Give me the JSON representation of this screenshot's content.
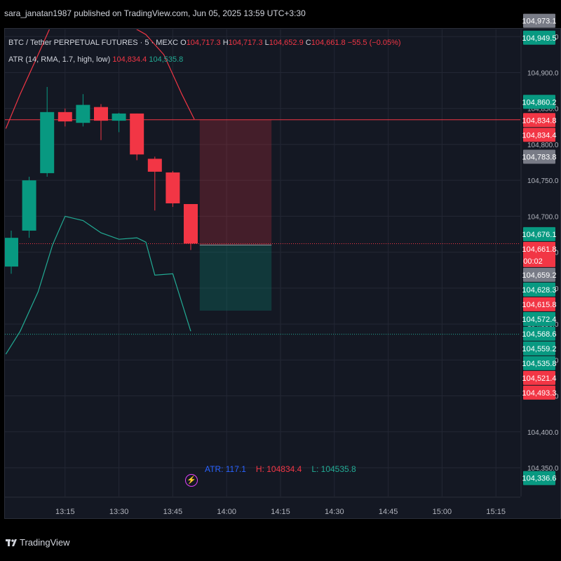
{
  "header": {
    "published": "sara_janatan1987 published on TradingView.com, Jun 05, 2025 13:59 UTC+3:30"
  },
  "legend": {
    "symbol": "BTC / Tether PERPETUAL FUTURES · 5 · MEXC",
    "o_label": "O",
    "o": "104,717.3",
    "h_label": "H",
    "h": "104,717.3",
    "l_label": "L",
    "l": "104,652.9",
    "c_label": "C",
    "c": "104,661.8",
    "change": "−55.5 (−0.05%)",
    "atr_title": "ATR (14, RMA, 1.7, high, low)",
    "atr_v1": "104,834.4",
    "atr_v2": "104,535.8"
  },
  "atr_panel": {
    "atr": "ATR: 117.1",
    "h": "H: 104834.4",
    "l": "L: 104535.8"
  },
  "footer": {
    "brand": "TradingView"
  },
  "colors": {
    "bg": "#141823",
    "up": "#089981",
    "down": "#f23645",
    "grid": "#232734",
    "axis_text": "#b2b5be"
  },
  "chart_data": {
    "type": "candlestick",
    "y_range": [
      104320,
      104990
    ],
    "y_ticks": [
      104950,
      104900,
      104850,
      104800,
      104750,
      104700,
      104650,
      104600,
      104550,
      104500,
      104450,
      104400,
      104350
    ],
    "y_tick_labels": [
      "104,950.0",
      "104,900.0",
      "104,850.0",
      "104,800.0",
      "104,750.0",
      "104,700.0",
      "104,650.0",
      "104,600.0",
      "104,550.0",
      "104,500.0",
      "104,450.0",
      "104,400.0",
      "104,350.0"
    ],
    "x_labels": [
      {
        "t": 3,
        "label": "13:15"
      },
      {
        "t": 6,
        "label": "13:30"
      },
      {
        "t": 9,
        "label": "13:45"
      },
      {
        "t": 12,
        "label": "14:00"
      },
      {
        "t": 15,
        "label": "14:15"
      },
      {
        "t": 18,
        "label": "14:30"
      },
      {
        "t": 21,
        "label": "14:45"
      },
      {
        "t": 24,
        "label": "15:00"
      },
      {
        "t": 27,
        "label": "15:15"
      }
    ],
    "candles": [
      {
        "t": 0,
        "o": 104630,
        "h": 104680,
        "l": 104620,
        "c": 104670
      },
      {
        "t": 1,
        "o": 104680,
        "h": 104755,
        "l": 104670,
        "c": 104750
      },
      {
        "t": 2,
        "o": 104760,
        "h": 104880,
        "l": 104755,
        "c": 104845
      },
      {
        "t": 3,
        "o": 104845,
        "h": 104850,
        "l": 104825,
        "c": 104832
      },
      {
        "t": 4,
        "o": 104830,
        "h": 104870,
        "l": 104825,
        "c": 104855
      },
      {
        "t": 5,
        "o": 104852,
        "h": 104856,
        "l": 104806,
        "c": 104833
      },
      {
        "t": 6,
        "o": 104833,
        "h": 104844,
        "l": 104817,
        "c": 104843
      },
      {
        "t": 7,
        "o": 104843,
        "h": 104843,
        "l": 104778,
        "c": 104786
      },
      {
        "t": 8,
        "o": 104780,
        "h": 104783,
        "l": 104708,
        "c": 104762
      },
      {
        "t": 9,
        "o": 104761,
        "h": 104763,
        "l": 104713,
        "c": 104718
      },
      {
        "t": 10,
        "o": 104717,
        "h": 104717,
        "l": 104653,
        "c": 104662
      }
    ],
    "atr_upper": [
      [
        -0.3,
        104822
      ],
      [
        0.5,
        104870
      ],
      [
        1.5,
        104925
      ],
      [
        2.3,
        104970
      ],
      [
        3,
        104995
      ],
      [
        4,
        104995
      ],
      [
        5,
        104990
      ],
      [
        5.5,
        104982
      ],
      [
        6.5,
        104967
      ],
      [
        7.5,
        104953
      ],
      [
        8.5,
        104925
      ],
      [
        9.5,
        104870
      ],
      [
        10.2,
        104835
      ]
    ],
    "atr_lower": [
      [
        -0.3,
        104508
      ],
      [
        0.5,
        104540
      ],
      [
        1.5,
        104595
      ],
      [
        2.3,
        104660
      ],
      [
        3,
        104700
      ],
      [
        4,
        104694
      ],
      [
        5,
        104677
      ],
      [
        6,
        104668
      ],
      [
        7,
        104670
      ],
      [
        7.5,
        104664
      ],
      [
        8,
        104618
      ],
      [
        9,
        104620
      ],
      [
        10,
        104540
      ]
    ],
    "position": {
      "t_start": 10.5,
      "t_end": 14.5,
      "entry": 104660.0,
      "stop": 104834.4,
      "target": 104568.6
    },
    "hlines": [
      {
        "y": 104834.4,
        "color": "#f23645",
        "style": "solid"
      },
      {
        "y": 104661.8,
        "color": "#f23645",
        "style": "dotted"
      },
      {
        "y": 104535.8,
        "color": "#22ab94",
        "style": "dotted"
      }
    ],
    "price_labels": [
      {
        "y": 104973.1,
        "text": "104,973.1",
        "bg": "#787b86"
      },
      {
        "y": 104949.5,
        "text": "104,949.5",
        "bg": "#089981"
      },
      {
        "y": 104860.2,
        "text": "104,860.2",
        "bg": "#089981"
      },
      {
        "y": 104834.8,
        "text": "104,834.8",
        "bg": "#f23645"
      },
      {
        "y": 104834.4,
        "text": "104,834.4",
        "bg": "#f23645"
      },
      {
        "y": 104783.8,
        "text": "104,783.8",
        "bg": "#787b86"
      },
      {
        "y": 104676.1,
        "text": "104,676.1",
        "bg": "#089981"
      },
      {
        "y": 104661.8,
        "text": "104,661.8",
        "bg": "#f23645",
        "sub": "00:02"
      },
      {
        "y": 104659.2,
        "text": "104,659.2",
        "bg": "#787b86"
      },
      {
        "y": 104628.3,
        "text": "104,628.3",
        "bg": "#089981"
      },
      {
        "y": 104615.8,
        "text": "104,615.8",
        "bg": "#f23645"
      },
      {
        "y": 104572.4,
        "text": "104,572.4",
        "bg": "#089981"
      },
      {
        "y": 104568.6,
        "text": "104,568.6",
        "bg": "#089981"
      },
      {
        "y": 104559.2,
        "text": "104,559.2",
        "bg": "#089981"
      },
      {
        "y": 104535.8,
        "text": "104,535.8",
        "bg": "#089981"
      },
      {
        "y": 104521.4,
        "text": "104,521.4",
        "bg": "#f23645"
      },
      {
        "y": 104493.3,
        "text": "104,493.3",
        "bg": "#f23645"
      },
      {
        "y": 104336.6,
        "text": "104,336.6",
        "bg": "#089981"
      }
    ]
  }
}
